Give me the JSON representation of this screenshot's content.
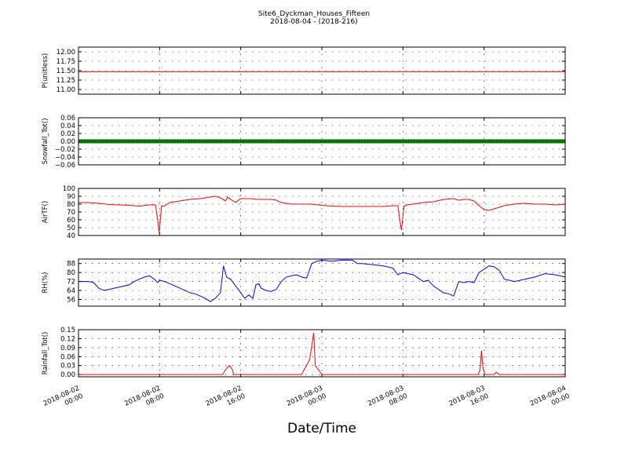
{
  "figure": {
    "title": "Site6_Dyckman_Houses_Fifteen",
    "subtitle": "2018-08-04 - (2018-216)",
    "xlabel": "Date/Time"
  },
  "chart_data": {
    "type": "line",
    "x_ticks": [
      {
        "hours": 0,
        "line1": "2018-08-02",
        "line2": "00:00"
      },
      {
        "hours": 8,
        "line1": "2018-08-02",
        "line2": "08:00"
      },
      {
        "hours": 16,
        "line1": "2018-08-02",
        "line2": "16:00"
      },
      {
        "hours": 24,
        "line1": "2018-08-03",
        "line2": "00:00"
      },
      {
        "hours": 32,
        "line1": "2018-08-03",
        "line2": "08:00"
      },
      {
        "hours": 40,
        "line1": "2018-08-03",
        "line2": "16:00"
      },
      {
        "hours": 48,
        "line1": "2018-08-04",
        "line2": "00:00"
      }
    ],
    "xlim": [
      0,
      48
    ],
    "grid": true,
    "panels": [
      {
        "ylabel": "P(unitless)",
        "ylim": [
          10.875,
          12.125
        ],
        "yticks": [
          12.0,
          11.75,
          11.5,
          11.25,
          11.0
        ],
        "ytick_labels": [
          "12.00",
          "11.75",
          "11.50",
          "11.25",
          "11.00"
        ],
        "color": "#ff0000",
        "style": "line",
        "points": [
          [
            0,
            11.47
          ],
          [
            48,
            11.47
          ]
        ]
      },
      {
        "ylabel": "Snowfall_Tot()",
        "ylim": [
          -0.06,
          0.06
        ],
        "yticks": [
          0.06,
          0.04,
          0.02,
          0.0,
          -0.02,
          -0.04,
          -0.06
        ],
        "ytick_labels": [
          "0.06",
          "0.04",
          "0.02",
          "0.00",
          "−0.02",
          "−0.04",
          "−0.06"
        ],
        "color": "#008000",
        "style": "thick",
        "points": [
          [
            0,
            0
          ],
          [
            48,
            0
          ]
        ]
      },
      {
        "ylabel": "AirTF()",
        "ylim": [
          40,
          100
        ],
        "yticks": [
          100,
          90,
          80,
          70,
          60,
          50,
          40
        ],
        "ytick_labels": [
          "100",
          "90",
          "80",
          "70",
          "60",
          "50",
          "40"
        ],
        "color": "#ff0000",
        "style": "line",
        "points": [
          [
            0,
            82
          ],
          [
            1,
            82
          ],
          [
            2,
            81
          ],
          [
            3,
            79.5
          ],
          [
            4,
            79
          ],
          [
            5,
            78.5
          ],
          [
            6,
            77.5
          ],
          [
            7,
            79
          ],
          [
            7.6,
            79
          ],
          [
            7.8,
            60
          ],
          [
            7.95,
            43
          ],
          [
            8.2,
            78
          ],
          [
            8.4,
            77
          ],
          [
            9,
            82
          ],
          [
            10,
            84
          ],
          [
            11,
            86
          ],
          [
            12,
            87
          ],
          [
            13,
            89
          ],
          [
            13.5,
            90
          ],
          [
            14,
            88
          ],
          [
            14.5,
            84
          ],
          [
            14.7,
            89
          ],
          [
            15,
            86
          ],
          [
            15.5,
            82
          ],
          [
            16,
            87
          ],
          [
            17,
            87
          ],
          [
            17.5,
            86
          ],
          [
            18,
            86
          ],
          [
            19,
            86
          ],
          [
            19.5,
            85
          ],
          [
            20,
            82
          ],
          [
            21,
            80
          ],
          [
            22,
            80
          ],
          [
            23,
            80
          ],
          [
            24,
            78.5
          ],
          [
            25,
            77.5
          ],
          [
            26,
            77
          ],
          [
            28,
            77
          ],
          [
            30,
            77
          ],
          [
            31,
            78
          ],
          [
            31.5,
            78
          ],
          [
            31.7,
            58
          ],
          [
            31.85,
            47
          ],
          [
            32.1,
            77
          ],
          [
            32.4,
            79
          ],
          [
            33,
            80
          ],
          [
            34,
            82
          ],
          [
            35,
            83
          ],
          [
            36,
            86
          ],
          [
            37,
            87
          ],
          [
            37.5,
            85
          ],
          [
            38,
            86
          ],
          [
            38.5,
            86
          ],
          [
            39,
            84
          ],
          [
            39.5,
            78
          ],
          [
            40,
            73
          ],
          [
            40.5,
            72
          ],
          [
            41,
            74
          ],
          [
            42,
            78
          ],
          [
            43,
            80
          ],
          [
            44,
            81
          ],
          [
            45,
            80
          ],
          [
            46,
            80
          ],
          [
            47,
            79
          ],
          [
            48,
            80
          ]
        ]
      },
      {
        "ylabel": "RH(%)",
        "ylim": [
          50,
          92
        ],
        "yticks": [
          88,
          80,
          72,
          64,
          56
        ],
        "ytick_labels": [
          "88",
          "80",
          "72",
          "64",
          "56"
        ],
        "color": "#0000ff",
        "style": "line",
        "points": [
          [
            0,
            72
          ],
          [
            1,
            72
          ],
          [
            1.5,
            71
          ],
          [
            2,
            66
          ],
          [
            2.5,
            64
          ],
          [
            3,
            65
          ],
          [
            4,
            67
          ],
          [
            5,
            69
          ],
          [
            5.5,
            72
          ],
          [
            6,
            74
          ],
          [
            6.5,
            76
          ],
          [
            7,
            77
          ],
          [
            7.5,
            74
          ],
          [
            7.8,
            71
          ],
          [
            8,
            73
          ],
          [
            8.5,
            72
          ],
          [
            9,
            70
          ],
          [
            10,
            66
          ],
          [
            11,
            62
          ],
          [
            11.5,
            61
          ],
          [
            12,
            59
          ],
          [
            12.5,
            57
          ],
          [
            13,
            54
          ],
          [
            13.5,
            57
          ],
          [
            14,
            62
          ],
          [
            14.3,
            86
          ],
          [
            14.6,
            76
          ],
          [
            15,
            74
          ],
          [
            15.5,
            68
          ],
          [
            16,
            62
          ],
          [
            16.4,
            57
          ],
          [
            16.8,
            60
          ],
          [
            17.2,
            57
          ],
          [
            17.5,
            69
          ],
          [
            17.8,
            70
          ],
          [
            18,
            66
          ],
          [
            18.5,
            64
          ],
          [
            19,
            63
          ],
          [
            19.5,
            65
          ],
          [
            20,
            72
          ],
          [
            20.5,
            76
          ],
          [
            21,
            77
          ],
          [
            21.5,
            78
          ],
          [
            22,
            76
          ],
          [
            22.5,
            75
          ],
          [
            23,
            88
          ],
          [
            23.5,
            90
          ],
          [
            24,
            91
          ],
          [
            25,
            90
          ],
          [
            26,
            91
          ],
          [
            27,
            91
          ],
          [
            27.5,
            88
          ],
          [
            28,
            88
          ],
          [
            29,
            87
          ],
          [
            30,
            86
          ],
          [
            31,
            84
          ],
          [
            31.5,
            78
          ],
          [
            32,
            80
          ],
          [
            33,
            78
          ],
          [
            34,
            72
          ],
          [
            34.5,
            73
          ],
          [
            35,
            68
          ],
          [
            36,
            62
          ],
          [
            36.5,
            61
          ],
          [
            37,
            59
          ],
          [
            37.5,
            72
          ],
          [
            38,
            71
          ],
          [
            38.5,
            72
          ],
          [
            39,
            71
          ],
          [
            39.5,
            80
          ],
          [
            40,
            83
          ],
          [
            40.5,
            86
          ],
          [
            41,
            85
          ],
          [
            41.5,
            82
          ],
          [
            42,
            74
          ],
          [
            42.5,
            73
          ],
          [
            43,
            72
          ],
          [
            44,
            74
          ],
          [
            45,
            76
          ],
          [
            46,
            79
          ],
          [
            47,
            78
          ],
          [
            48,
            76
          ]
        ]
      },
      {
        "ylabel": "Rainfall_Tot()",
        "ylim": [
          -0.0075,
          0.15
        ],
        "yticks": [
          0.15,
          0.12,
          0.09,
          0.06,
          0.03,
          0.0
        ],
        "ytick_labels": [
          "0.15",
          "0.12",
          "0.09",
          "0.06",
          "0.03",
          "0.00"
        ],
        "color": "#ff0000",
        "style": "line",
        "points": [
          [
            0,
            0
          ],
          [
            14.2,
            0
          ],
          [
            14.6,
            0.02
          ],
          [
            14.9,
            0.03
          ],
          [
            15.2,
            0.015
          ],
          [
            15.3,
            0
          ],
          [
            22,
            0
          ],
          [
            22.8,
            0.05
          ],
          [
            23.2,
            0.14
          ],
          [
            23.35,
            0.03
          ],
          [
            23.7,
            0.015
          ],
          [
            24,
            0
          ],
          [
            39.4,
            0
          ],
          [
            39.6,
            0.015
          ],
          [
            39.75,
            0.08
          ],
          [
            39.9,
            0.02
          ],
          [
            40.1,
            0
          ],
          [
            41,
            0
          ],
          [
            41.2,
            0.008
          ],
          [
            41.5,
            0
          ],
          [
            48,
            0
          ]
        ]
      }
    ]
  }
}
